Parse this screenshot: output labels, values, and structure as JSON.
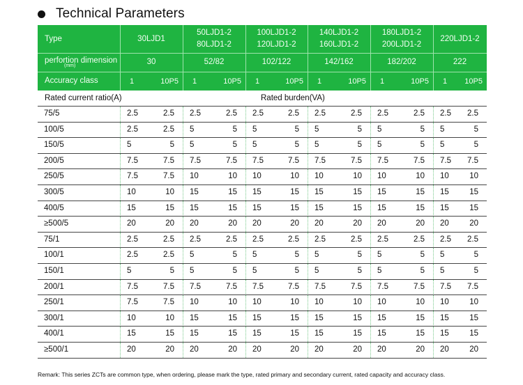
{
  "title": "Technical Parameters",
  "header": {
    "type_label": "Type",
    "dimension_label": "perfortion dimension",
    "dimension_unit": "(mm)",
    "accuracy_label": "Accuracy class",
    "types": [
      {
        "lines": [
          "30LJD1"
        ],
        "dim": "30"
      },
      {
        "lines": [
          "50LJD1-2",
          "80LJD1-2"
        ],
        "dim": "52/82"
      },
      {
        "lines": [
          "100LJD1-2",
          "120LJD1-2"
        ],
        "dim": "102/122"
      },
      {
        "lines": [
          "140LJD1-2",
          "160LJD1-2"
        ],
        "dim": "142/162"
      },
      {
        "lines": [
          "180LJD1-2",
          "200LJD1-2"
        ],
        "dim": "182/202"
      },
      {
        "lines": [
          "220LJD1-2"
        ],
        "dim": "222"
      }
    ],
    "accuracy": [
      "1",
      "10P5"
    ]
  },
  "table": {
    "ratio_label": "Rated current ratio(A)",
    "burden_label": "Rated burden(VA)",
    "rows": [
      {
        "ratio": "75/5",
        "values": [
          "2.5",
          "2.5",
          "2.5",
          "2.5",
          "2.5",
          "2.5",
          "2.5",
          "2.5",
          "2.5",
          "2.5",
          "2.5",
          "2.5"
        ]
      },
      {
        "ratio": "100/5",
        "values": [
          "2.5",
          "2.5",
          "5",
          "5",
          "5",
          "5",
          "5",
          "5",
          "5",
          "5",
          "5",
          "5"
        ]
      },
      {
        "ratio": "150/5",
        "values": [
          "5",
          "5",
          "5",
          "5",
          "5",
          "5",
          "5",
          "5",
          "5",
          "5",
          "5",
          "5"
        ]
      },
      {
        "ratio": "200/5",
        "values": [
          "7.5",
          "7.5",
          "7.5",
          "7.5",
          "7.5",
          "7.5",
          "7.5",
          "7.5",
          "7.5",
          "7.5",
          "7.5",
          "7.5"
        ]
      },
      {
        "ratio": "250/5",
        "values": [
          "7.5",
          "7.5",
          "10",
          "10",
          "10",
          "10",
          "10",
          "10",
          "10",
          "10",
          "10",
          "10"
        ]
      },
      {
        "ratio": "300/5",
        "values": [
          "10",
          "10",
          "15",
          "15",
          "15",
          "15",
          "15",
          "15",
          "15",
          "15",
          "15",
          "15"
        ]
      },
      {
        "ratio": "400/5",
        "values": [
          "15",
          "15",
          "15",
          "15",
          "15",
          "15",
          "15",
          "15",
          "15",
          "15",
          "15",
          "15"
        ]
      },
      {
        "ratio": "≥500/5",
        "values": [
          "20",
          "20",
          "20",
          "20",
          "20",
          "20",
          "20",
          "20",
          "20",
          "20",
          "20",
          "20"
        ]
      },
      {
        "ratio": "75/1",
        "values": [
          "2.5",
          "2.5",
          "2.5",
          "2.5",
          "2.5",
          "2.5",
          "2.5",
          "2.5",
          "2.5",
          "2.5",
          "2.5",
          "2.5"
        ]
      },
      {
        "ratio": "100/1",
        "values": [
          "2.5",
          "2.5",
          "5",
          "5",
          "5",
          "5",
          "5",
          "5",
          "5",
          "5",
          "5",
          "5"
        ]
      },
      {
        "ratio": "150/1",
        "values": [
          "5",
          "5",
          "5",
          "5",
          "5",
          "5",
          "5",
          "5",
          "5",
          "5",
          "5",
          "5"
        ]
      },
      {
        "ratio": "200/1",
        "values": [
          "7.5",
          "7.5",
          "7.5",
          "7.5",
          "7.5",
          "7.5",
          "7.5",
          "7.5",
          "7.5",
          "7.5",
          "7.5",
          "7.5"
        ]
      },
      {
        "ratio": "250/1",
        "values": [
          "7.5",
          "7.5",
          "10",
          "10",
          "10",
          "10",
          "10",
          "10",
          "10",
          "10",
          "10",
          "10"
        ]
      },
      {
        "ratio": "300/1",
        "values": [
          "10",
          "10",
          "15",
          "15",
          "15",
          "15",
          "15",
          "15",
          "15",
          "15",
          "15",
          "15"
        ]
      },
      {
        "ratio": "400/1",
        "values": [
          "15",
          "15",
          "15",
          "15",
          "15",
          "15",
          "15",
          "15",
          "15",
          "15",
          "15",
          "15"
        ]
      },
      {
        "ratio": "≥500/1",
        "values": [
          "20",
          "20",
          "20",
          "20",
          "20",
          "20",
          "20",
          "20",
          "20",
          "20",
          "20",
          "20"
        ]
      }
    ]
  },
  "remark": "Remark: This series ZCTs are common type, when ordering, please mark the type, rated primary and secondary current, rated capacity and accuracy class."
}
